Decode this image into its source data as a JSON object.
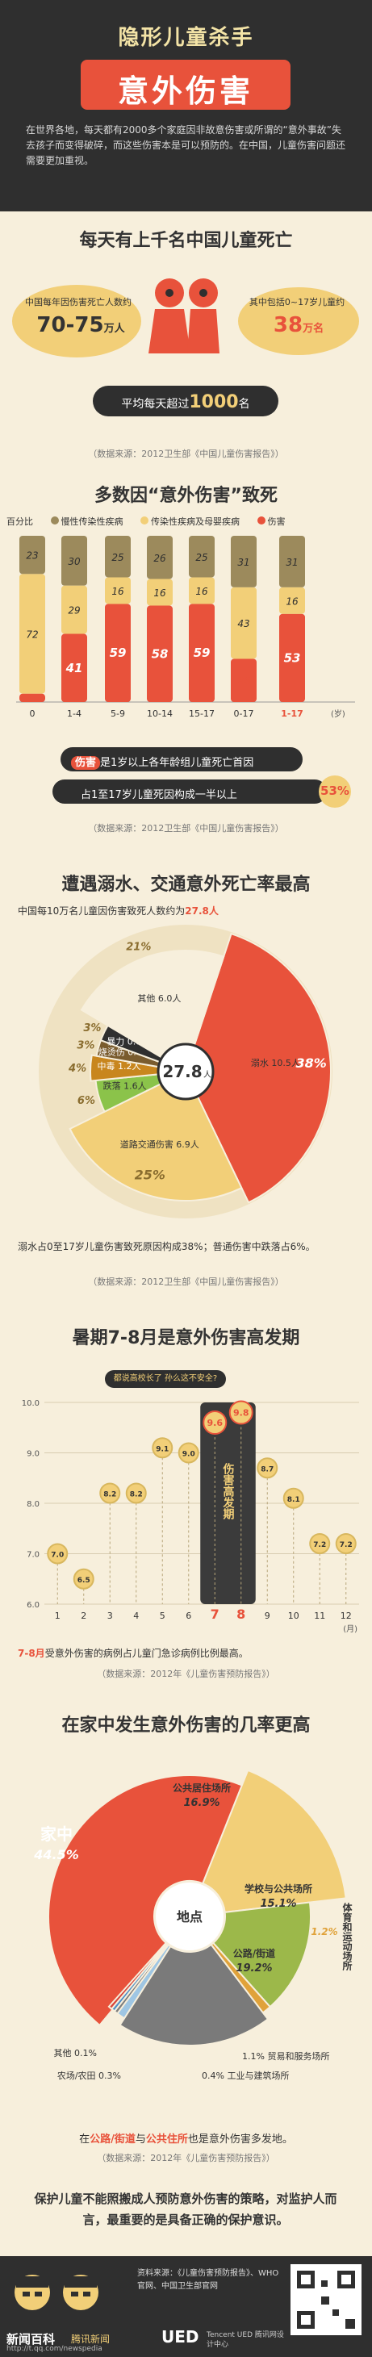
{
  "header": {
    "title_top": "隐形儿童杀手",
    "title_main": "意外伤害",
    "intro": "在世界各地，每天都有2000多个家庭因非故意伤害或所谓的“意外事故”失去孩子而变得破碎，而这些伤害本是可以预防的。在中国，儿童伤害问题还需要更加重视。"
  },
  "s1": {
    "title": "每天有上千名中国儿童死亡",
    "left_label": "中国每年因伤害死亡人数约",
    "left_value": "70-75",
    "left_unit": "万人",
    "right_label": "其中包括0~17岁儿童约",
    "right_value": "38",
    "right_unit": "万名",
    "daily_label": "平均每天超过",
    "daily_value": "1000",
    "daily_unit": "名",
    "source": "（数据来源：2012卫生部《中国儿童伤害报告》）"
  },
  "s2": {
    "title": "多数因“意外伤害”致死",
    "legend_prefix": "百分比",
    "legend": [
      "慢性传染性疾病",
      "传染性疾病及母婴疾病",
      "伤害"
    ],
    "x_unit": "(岁)",
    "banner1_tag": "伤害",
    "banner1_text": "是1岁以上各年龄组儿童死亡首因",
    "banner2_text": "占1至17岁儿童死因构成一半以上",
    "banner2_value": "53%",
    "source": "（数据来源：2012卫生部《中国儿童伤害报告》）"
  },
  "chart_data": [
    {
      "type": "bar",
      "title": "多数因“意外伤害”致死",
      "ylabel": "百分比",
      "categories": [
        "0",
        "1-4",
        "5-9",
        "10-14",
        "15-17",
        "0-17",
        "1-17"
      ],
      "series": [
        {
          "name": "慢性传染性疾病",
          "values": [
            23,
            30,
            25,
            26,
            25,
            31,
            31
          ]
        },
        {
          "name": "传染性疾病及母婴疾病",
          "values": [
            72,
            29,
            16,
            16,
            16,
            43,
            16
          ]
        },
        {
          "name": "伤害",
          "values": [
            5,
            41,
            59,
            58,
            59,
            26,
            53
          ]
        }
      ],
      "ylim": [
        0,
        100
      ]
    },
    {
      "type": "pie",
      "title": "遭遇溺水、交通意外死亡率最高",
      "subtitle": "中国每10万名儿童因伤害致死人数约为27.8人",
      "center_value": "27.8",
      "center_unit": "人",
      "slices": [
        {
          "label": "溺水",
          "value": 10.5,
          "text": "10.5人",
          "percent": "38%"
        },
        {
          "label": "道路交通伤害",
          "value": 6.9,
          "text": "6.9人",
          "percent": "25%"
        },
        {
          "label": "跌落",
          "value": 1.6,
          "text": "1.6人",
          "percent": "6%"
        },
        {
          "label": "中毒",
          "value": 1.2,
          "text": "1.2人",
          "percent": "4%"
        },
        {
          "label": "烧烫伤",
          "value": 0.8,
          "text": "0.8人",
          "percent": "3%"
        },
        {
          "label": "暴力",
          "value": 0.8,
          "text": "0.8人",
          "percent": "3%"
        },
        {
          "label": "其他",
          "value": 6.0,
          "text": "6.0人",
          "percent": "21%"
        }
      ]
    },
    {
      "type": "line",
      "title": "暑期7-8月是意外伤害高发期",
      "x": [
        1,
        2,
        3,
        4,
        5,
        6,
        7,
        8,
        9,
        10,
        11,
        12
      ],
      "y": [
        7.0,
        6.5,
        8.2,
        8.2,
        9.1,
        9.0,
        9.6,
        9.8,
        8.7,
        8.1,
        7.2,
        7.2
      ],
      "ylim": [
        6,
        10
      ],
      "yticks": [
        "10.0",
        "9.0",
        "8.0",
        "7.0",
        "6.0"
      ],
      "x_unit": "(月)"
    },
    {
      "type": "pie",
      "title": "在家中发生意外伤害的几率更高",
      "center_label": "地点",
      "slices": [
        {
          "label": "家中",
          "value": 44.5,
          "text": "44.5%"
        },
        {
          "label": "公共居住场所",
          "value": 16.9,
          "text": "16.9%"
        },
        {
          "label": "学校与公共场所",
          "value": 15.1,
          "text": "15.1%"
        },
        {
          "label": "体育和运动场所",
          "value": 1.2,
          "text": "1.2%"
        },
        {
          "label": "公路/街道",
          "value": 19.2,
          "text": "19.2%"
        },
        {
          "label": "贸易和服务场所",
          "value": 1.1,
          "text": "1.1%"
        },
        {
          "label": "工业与建筑场所",
          "value": 0.4,
          "text": "0.4%"
        },
        {
          "label": "农场/农田",
          "value": 0.3,
          "text": "0.3%"
        },
        {
          "label": "其他",
          "value": 0.1,
          "text": "0.1%"
        }
      ]
    }
  ],
  "s3": {
    "title": "遭遇溺水、交通意外死亡率最高",
    "subtitle_prefix": "中国每10万名儿童因伤害致死人数约为",
    "subtitle_value": "27.8人",
    "note": "溺水占0至17岁儿童伤害致死原因构成38%；普通伤害中跌落占6%。",
    "source": "（数据来源：2012卫生部《中国儿童伤害报告》）"
  },
  "s4": {
    "title": "暑期7-8月是意外伤害高发期",
    "bubble": "都说高校长了 孙么这不安全?",
    "peak_label": "伤害高发期",
    "x_unit": "(月)",
    "note_value": "7-8月",
    "note_text": "受意外伤害的病例占儿童门急诊病例比例最高。",
    "source": "（数据来源：2012年《儿童伤害预防报告》）"
  },
  "s5": {
    "title": "在家中发生意外伤害的几率更高",
    "note_part1": "在",
    "note_hl1": "公路/街道",
    "note_part2": "与",
    "note_hl2": "公共住所",
    "note_part3": "也是意外伤害多发地。",
    "source": "（数据来源：2012年《儿童伤害预防报告》）",
    "closing": "保护儿童不能照搬成人预防意外伤害的策略，对监护人而言，最重要的是具备正确的保护意识。"
  },
  "footer": {
    "brand1": "新闻百科",
    "brand2": "腾讯新闻",
    "brand_url": "http://t.qq.com/newspedia",
    "credit": "资料来源：《儿童伤害预防报告》、WHO官网、中国卫生部官网",
    "logo_text": "Tencent UED 腾讯网设计中心",
    "logo_mark": "UED"
  },
  "colors": {
    "chronic": "#9c8a5c",
    "infectious": "#f2cf78",
    "injury": "#e8523b",
    "background": "#f7efdc",
    "dark": "#2f2f2f"
  }
}
